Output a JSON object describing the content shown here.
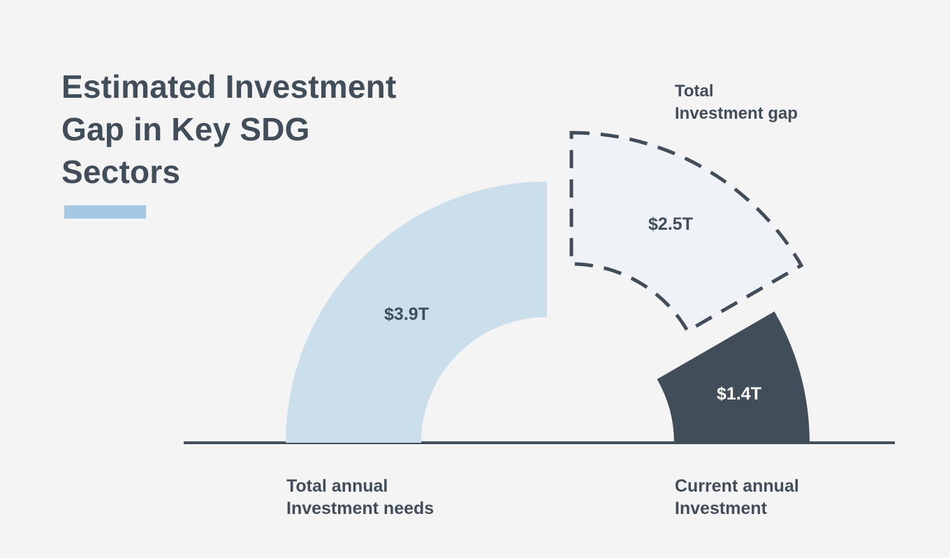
{
  "title_lines": [
    "Estimated Investment",
    "Gap in Key SDG",
    "Sectors"
  ],
  "colors": {
    "background": "#f4f4f4",
    "accent": "#a6c7e2",
    "needs": "#cbdeec",
    "gap_fill": "#eff3f8",
    "current": "#414d59",
    "text": "#414d59"
  },
  "chart_data": {
    "type": "radial-bar",
    "title": "Estimated Investment Gap in Key SDG Sectors",
    "unit": "USD trillions",
    "segments": [
      {
        "name": "Total annual Investment needs",
        "value": 3.9,
        "label": "$3.9T",
        "style": "solid-light"
      },
      {
        "name": "Total Investment gap",
        "value": 2.5,
        "label": "$2.5T",
        "style": "dashed-outline"
      },
      {
        "name": "Current annual Investment",
        "value": 1.4,
        "label": "$1.4T",
        "style": "solid-dark"
      }
    ]
  },
  "captions": {
    "gap": [
      "Total",
      "Investment gap"
    ],
    "needs": [
      "Total annual",
      "Investment needs"
    ],
    "current": [
      "Current annual",
      "Investment"
    ]
  }
}
